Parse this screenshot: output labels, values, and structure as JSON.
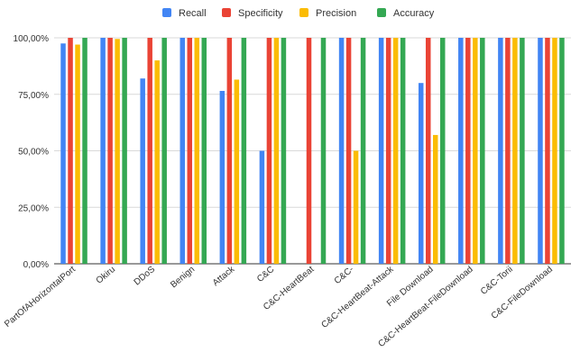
{
  "chart_data": {
    "type": "bar",
    "title": "",
    "xlabel": "",
    "ylabel": "",
    "ylim": [
      0,
      100
    ],
    "y_ticks": [
      "0,00%",
      "25,00%",
      "50,00%",
      "75,00%",
      "100,00%"
    ],
    "grid": true,
    "legend_position": "top-center",
    "categories": [
      "PartOfAHorizontalPort",
      "Okiru",
      "DDoS",
      "Benign",
      "Attack",
      "C&C",
      "C&C-HeartBeat",
      "C&C-",
      "C&C-HeartBeat-Attack",
      "File Download",
      "C&C-HeartBeat-FileDownload",
      "C&C-Torii",
      "C&C-FileDownload"
    ],
    "series": [
      {
        "name": "Recall",
        "color": "#4285f4",
        "values": [
          97.5,
          100,
          82,
          100,
          76.5,
          50,
          0,
          100,
          100,
          80,
          100,
          100,
          100
        ]
      },
      {
        "name": "Specificity",
        "color": "#ea4335",
        "values": [
          100,
          100,
          100,
          100,
          100,
          100,
          100,
          100,
          100,
          100,
          100,
          100,
          100
        ]
      },
      {
        "name": "Precision",
        "color": "#fbbc04",
        "values": [
          97,
          99.5,
          90,
          100,
          81.5,
          100,
          0,
          50,
          100,
          57,
          100,
          100,
          100
        ]
      },
      {
        "name": "Accuracy",
        "color": "#34a853",
        "values": [
          100,
          100,
          100,
          100,
          100,
          100,
          100,
          100,
          100,
          100,
          100,
          100,
          100
        ]
      }
    ]
  }
}
